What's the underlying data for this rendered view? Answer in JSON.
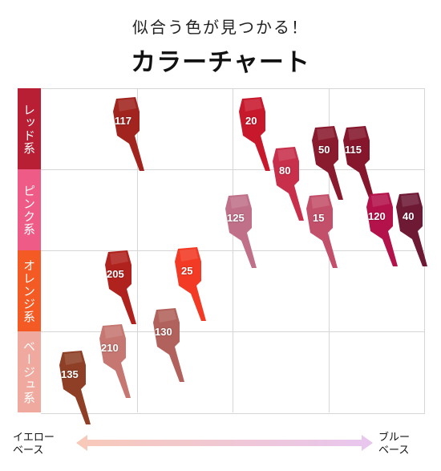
{
  "header": {
    "subtitle": "似合う色が見つかる！",
    "title": "カラーチャート"
  },
  "categories": [
    {
      "label": "レッド系",
      "color": "#b81f35"
    },
    {
      "label": "ピンク系",
      "color": "#ee5b87"
    },
    {
      "label": "オレンジ系",
      "color": "#f45a24"
    },
    {
      "label": "ベージュ系",
      "color": "#efa99e"
    }
  ],
  "axis": {
    "left_line1": "イエロー",
    "left_line2": "ベース",
    "right_line1": "ブルー",
    "right_line2": "ベース",
    "gradient_start": "#f8c9b8",
    "gradient_end": "#e8c6ef"
  },
  "shades": [
    {
      "code": "117",
      "color": "#a1241f"
    },
    {
      "code": "20",
      "color": "#c8182c"
    },
    {
      "code": "50",
      "color": "#8a1a2d"
    },
    {
      "code": "115",
      "color": "#86162c"
    },
    {
      "code": "80",
      "color": "#c72f4a"
    },
    {
      "code": "125",
      "color": "#c07189"
    },
    {
      "code": "15",
      "color": "#c3506a"
    },
    {
      "code": "120",
      "color": "#b4124a"
    },
    {
      "code": "40",
      "color": "#6e1a35"
    },
    {
      "code": "205",
      "color": "#b0221e"
    },
    {
      "code": "25",
      "color": "#f23a24"
    },
    {
      "code": "130",
      "color": "#b2625c"
    },
    {
      "code": "210",
      "color": "#c67772"
    },
    {
      "code": "135",
      "color": "#8e3f26"
    }
  ]
}
